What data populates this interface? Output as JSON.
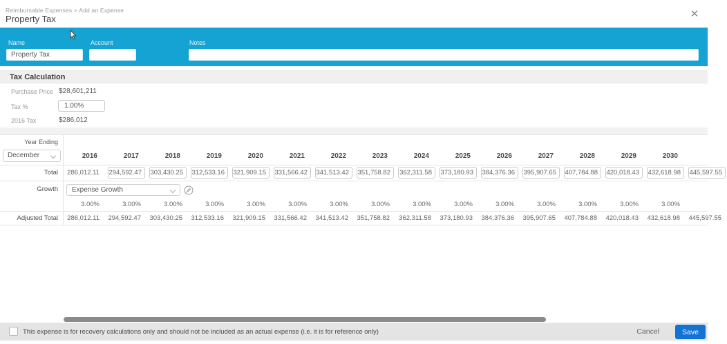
{
  "header": {
    "breadcrumb": "Reimbursable Expenses > Add an Expense",
    "title": "Property Tax",
    "close_icon": "close"
  },
  "form": {
    "name": {
      "label": "Name",
      "value": "Property Tax"
    },
    "account": {
      "label": "Account",
      "value": ""
    },
    "notes": {
      "label": "Notes",
      "value": ""
    }
  },
  "tax_calculation": {
    "section_title": "Tax Calculation",
    "purchase_price": {
      "label": "Purchase Price",
      "value": "$28,601,211"
    },
    "tax_percent": {
      "label": "Tax %",
      "value": "1.00%"
    },
    "base_tax": {
      "label": "2016 Tax",
      "value": "$286,012"
    }
  },
  "schedule": {
    "year_ending_label": "Year Ending",
    "month_select_value": "December",
    "total_label": "Total",
    "growth_label": "Growth",
    "adjusted_label": "Adjusted Total",
    "growth_select_value": "Expense Growth",
    "years": [
      "2016",
      "2017",
      "2018",
      "2019",
      "2020",
      "2021",
      "2022",
      "2023",
      "2024",
      "2025",
      "2026",
      "2027",
      "2028",
      "2029",
      "2030",
      ""
    ],
    "totals": [
      "286,012.11",
      "294,592.47",
      "303,430.25",
      "312,533.16",
      "321,909.15",
      "331,566.42",
      "341,513.42",
      "351,758.82",
      "362,311.58",
      "373,180.93",
      "384,376.36",
      "395,907.65",
      "407,784.88",
      "420,018.43",
      "432,618.98",
      "445,597.55"
    ],
    "growth_rates": [
      "3.00%",
      "3.00%",
      "3.00%",
      "3.00%",
      "3.00%",
      "3.00%",
      "3.00%",
      "3.00%",
      "3.00%",
      "3.00%",
      "3.00%",
      "3.00%",
      "3.00%",
      "3.00%",
      "3.00%",
      ""
    ],
    "adjusted_totals": [
      "286,012.11",
      "294,592.47",
      "303,430.25",
      "312,533.16",
      "321,909.15",
      "331,566.42",
      "341,513.42",
      "351,758.82",
      "362,311.58",
      "373,180.93",
      "384,376.36",
      "395,907.65",
      "407,784.88",
      "420,018.43",
      "432,618.98",
      "445,597.55"
    ]
  },
  "footer": {
    "checkbox_checked": false,
    "checkbox_label": "This expense is for recovery calculations only and should not be included as an actual expense (i.e. it is for reference only)",
    "cancel_label": "Cancel",
    "save_label": "Save"
  },
  "colors": {
    "blue_bar": "#14a3d2",
    "save_button": "#1273d2",
    "scrollbar_thumb": "#8b8b8b"
  }
}
